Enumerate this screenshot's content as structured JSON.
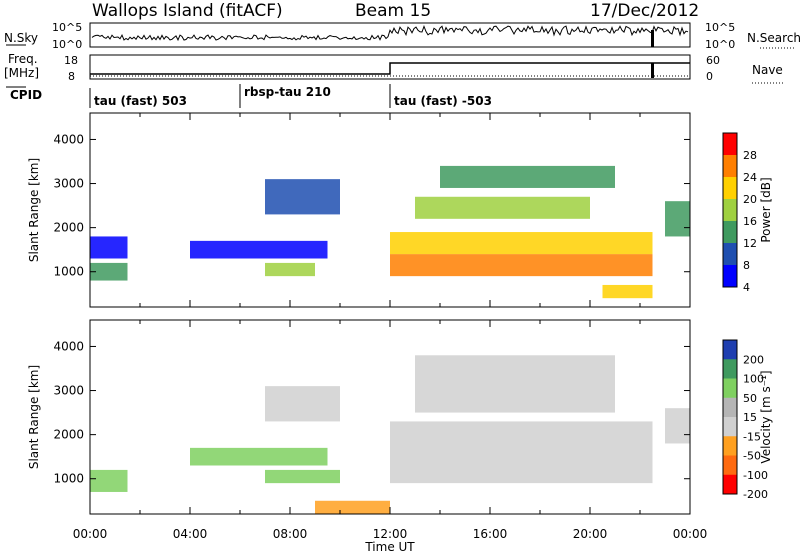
{
  "header": {
    "station": "Wallops Island (fitACF)",
    "beam": "Beam 15",
    "date": "17/Dec/2012"
  },
  "small_panels": {
    "nsky_label": "N.Sky",
    "nsky_ticks": [
      "10^5",
      "10^0"
    ],
    "nsearch_label": "N.Search",
    "nsearch_ticks": [
      "10^5",
      "10^0"
    ],
    "freq_label": "Freq.",
    "freq_unit": "[MHz]",
    "freq_ticks": [
      "18",
      "8"
    ],
    "nave_label": "Nave",
    "nave_ticks": [
      "60",
      "0"
    ],
    "cpid_label": "CPID",
    "cpid_segments": [
      {
        "label": "tau (fast) 503",
        "start": 0
      },
      {
        "label": "rbsp-tau 210",
        "start": 6
      },
      {
        "label": "tau (fast) -503",
        "start": 12
      }
    ]
  },
  "chart_data": [
    {
      "type": "heatmap",
      "title": "",
      "xlabel": "",
      "ylabel": "Slant Range [km]",
      "xlim": [
        0,
        24
      ],
      "ylim": [
        200,
        4600
      ],
      "y_ticks": [
        1000,
        2000,
        3000,
        4000
      ],
      "colorbar": {
        "label": "Power [dB]",
        "ticks": [
          "28",
          "24",
          "20",
          "16",
          "12",
          "8",
          "4"
        ],
        "colors": [
          "#ff0000",
          "#ff7f00",
          "#ffd000",
          "#9fd040",
          "#3f9a5f",
          "#1f4fb0",
          "#0000ff"
        ]
      },
      "regions": [
        {
          "t0": 0.0,
          "t1": 1.5,
          "r0": 800,
          "r1": 1200,
          "value": 12
        },
        {
          "t0": 0.0,
          "t1": 1.5,
          "r0": 1300,
          "r1": 1800,
          "value": 6
        },
        {
          "t0": 4.0,
          "t1": 9.5,
          "r0": 1300,
          "r1": 1700,
          "value": 5
        },
        {
          "t0": 7.0,
          "t1": 9.0,
          "r0": 900,
          "r1": 1200,
          "value": 18
        },
        {
          "t0": 7.0,
          "t1": 10.0,
          "r0": 2300,
          "r1": 3100,
          "value": 9
        },
        {
          "t0": 12.0,
          "t1": 22.5,
          "r0": 900,
          "r1": 1400,
          "value": 27
        },
        {
          "t0": 12.0,
          "t1": 22.5,
          "r0": 1400,
          "r1": 1900,
          "value": 22
        },
        {
          "t0": 13.0,
          "t1": 20.0,
          "r0": 2200,
          "r1": 2700,
          "value": 18
        },
        {
          "t0": 14.0,
          "t1": 21.0,
          "r0": 2900,
          "r1": 3400,
          "value": 15
        },
        {
          "t0": 20.5,
          "t1": 22.5,
          "r0": 400,
          "r1": 700,
          "value": 21
        },
        {
          "t0": 23.0,
          "t1": 24.0,
          "r0": 1800,
          "r1": 2600,
          "value": 14
        }
      ]
    },
    {
      "type": "heatmap",
      "title": "",
      "xlabel": "Time UT",
      "ylabel": "Slant Range [km]",
      "xlim": [
        0,
        24
      ],
      "ylim": [
        200,
        4600
      ],
      "x_ticks": [
        "00:00",
        "04:00",
        "08:00",
        "12:00",
        "16:00",
        "20:00",
        "00:00"
      ],
      "y_ticks": [
        1000,
        2000,
        3000,
        4000
      ],
      "colorbar": {
        "label": "Velocity [m s⁻¹]",
        "ticks": [
          "200",
          "100",
          "50",
          "15",
          "-15",
          "-50",
          "-100",
          "-200"
        ],
        "colors": [
          "#1f3fb0",
          "#3f9a5f",
          "#7fd060",
          "#b5b5b5",
          "#d0d0d0",
          "#ffa020",
          "#ff6a10",
          "#ff0000"
        ]
      },
      "regions": [
        {
          "t0": 0.0,
          "t1": 1.5,
          "r0": 700,
          "r1": 1200,
          "value": 60
        },
        {
          "t0": 4.0,
          "t1": 9.5,
          "r0": 1300,
          "r1": 1700,
          "value": 50
        },
        {
          "t0": 7.0,
          "t1": 10.0,
          "r0": 900,
          "r1": 1200,
          "value": 50
        },
        {
          "t0": 7.0,
          "t1": 10.0,
          "r0": 2300,
          "r1": 3100,
          "value": 0
        },
        {
          "t0": 9.0,
          "t1": 12.0,
          "r0": 200,
          "r1": 500,
          "value": -50
        },
        {
          "t0": 12.0,
          "t1": 22.5,
          "r0": 900,
          "r1": 2300,
          "value": 0
        },
        {
          "t0": 13.0,
          "t1": 21.0,
          "r0": 2500,
          "r1": 3800,
          "value": 0
        },
        {
          "t0": 23.0,
          "t1": 24.0,
          "r0": 1800,
          "r1": 2600,
          "value": 0
        }
      ]
    }
  ]
}
